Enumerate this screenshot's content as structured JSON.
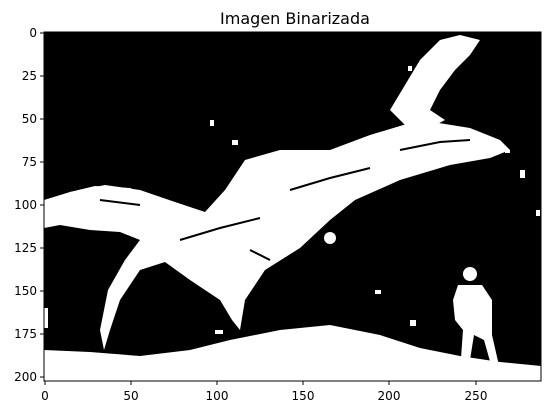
{
  "figure": {
    "title": "Imagen Binarizada",
    "image_description_colors": {
      "foreground": "#ffffff",
      "background": "#000000"
    },
    "x_axis": {
      "ticks": [
        0,
        50,
        100,
        150,
        200,
        250
      ],
      "range": [
        -0.5,
        287.5
      ]
    },
    "y_axis": {
      "ticks": [
        0,
        25,
        50,
        75,
        100,
        125,
        150,
        175,
        200
      ],
      "range": [
        204.5,
        -0.5
      ],
      "inverted": true
    }
  }
}
